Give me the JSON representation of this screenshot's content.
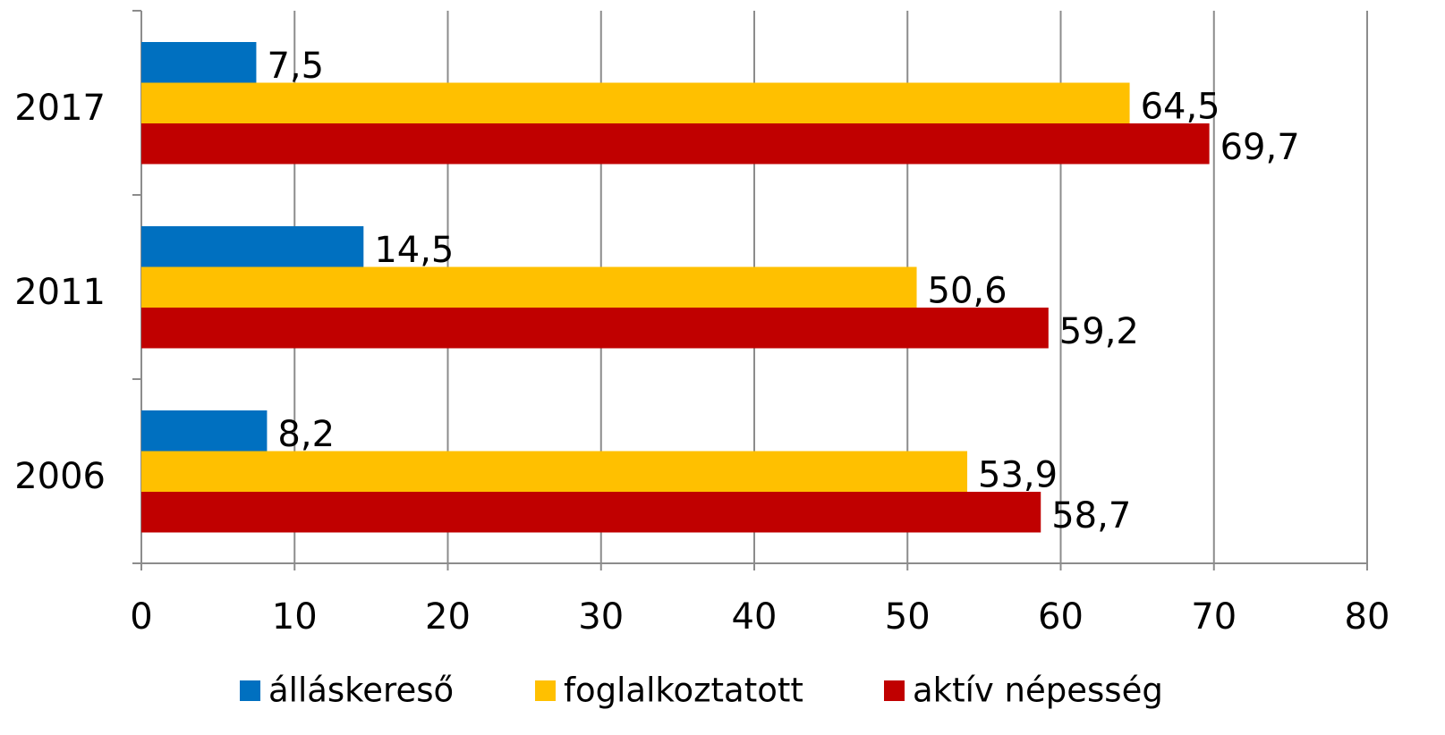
{
  "chart_data": {
    "type": "bar",
    "orientation": "horizontal",
    "categories": [
      "2017",
      "2011",
      "2006"
    ],
    "series": [
      {
        "name": "álláskereső",
        "color": "#0070c0",
        "values": [
          7.5,
          14.5,
          8.2
        ],
        "value_labels": [
          "7,5",
          "14,5",
          "8,2"
        ]
      },
      {
        "name": "foglalkoztatott",
        "color": "#ffc000",
        "values": [
          64.5,
          50.6,
          53.9
        ],
        "value_labels": [
          "64,5",
          "50,6",
          "53,9"
        ]
      },
      {
        "name": "aktív népesség",
        "color": "#c00000",
        "values": [
          69.7,
          59.2,
          58.7
        ],
        "value_labels": [
          "69,7",
          "59,2",
          "58,7"
        ]
      }
    ],
    "xlim": [
      0,
      80
    ],
    "xticks": [
      0,
      10,
      20,
      30,
      40,
      50,
      60,
      70,
      80
    ],
    "grid": true,
    "legend": "bottom"
  }
}
